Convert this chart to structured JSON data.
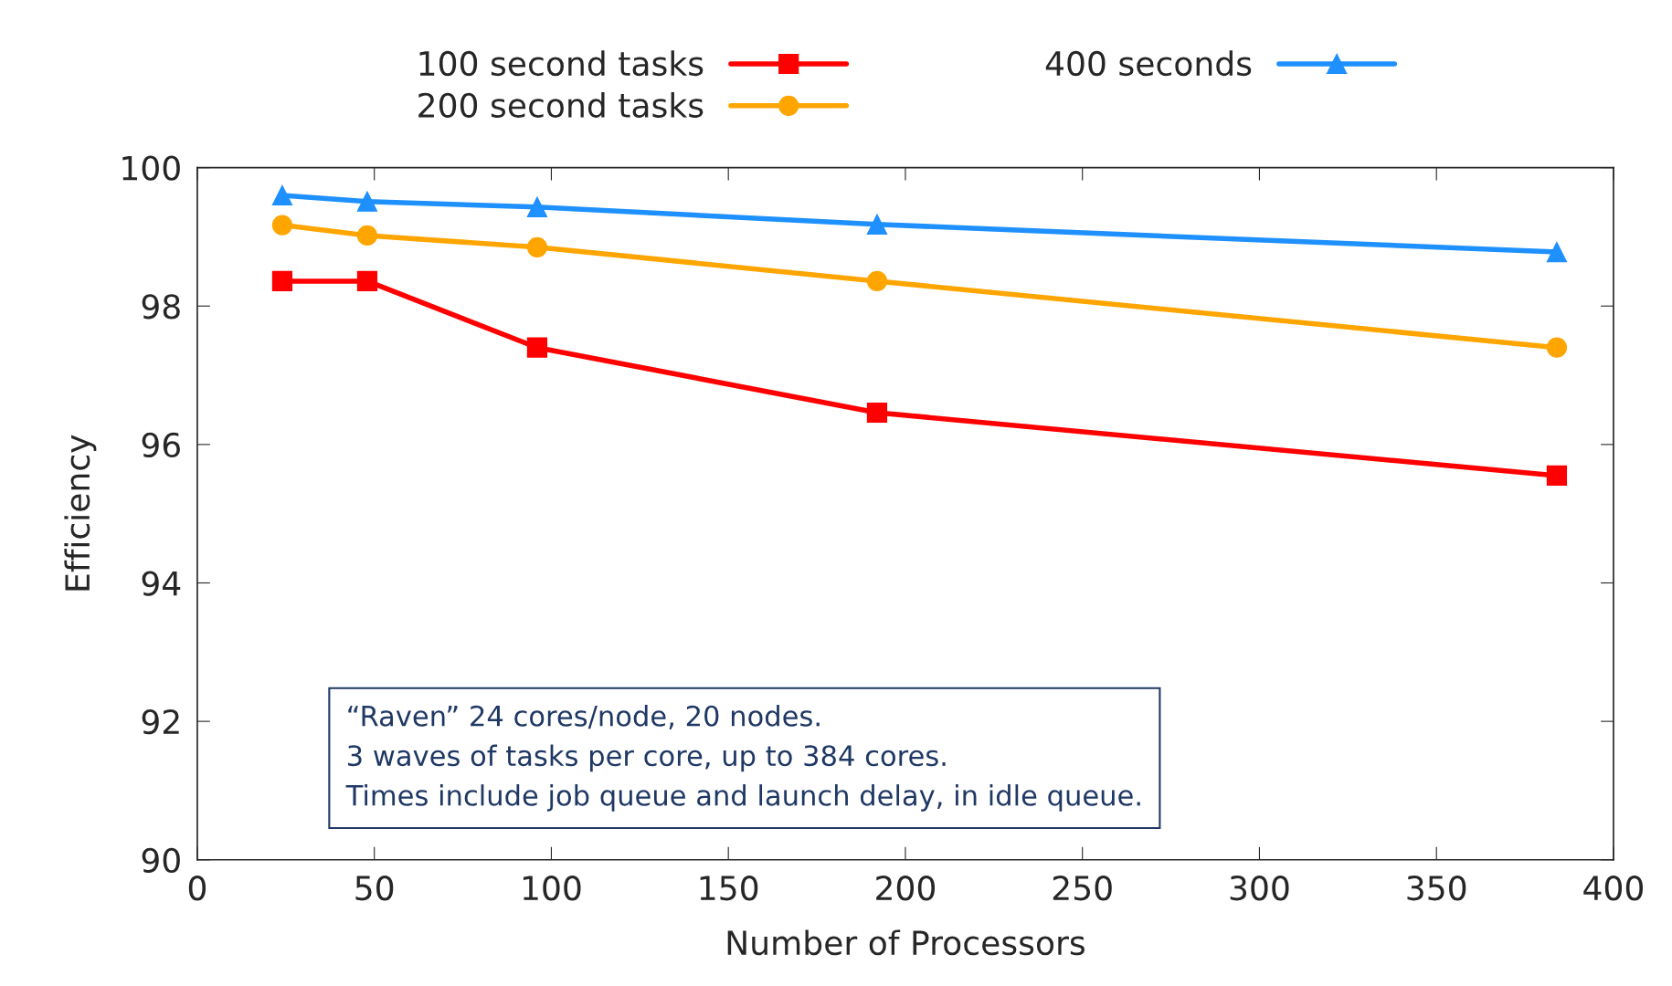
{
  "chart_data": {
    "type": "line",
    "xlabel": "Number of Processors",
    "ylabel": "Efficiency",
    "x": [
      24,
      48,
      96,
      192,
      384
    ],
    "series": [
      {
        "name": "100 second tasks",
        "color": "#ff0000",
        "marker": "square",
        "values": [
          98.36,
          98.36,
          97.4,
          96.46,
          95.55
        ]
      },
      {
        "name": "200 second tasks",
        "color": "#ffa500",
        "marker": "circle",
        "values": [
          99.17,
          99.02,
          98.85,
          98.36,
          97.4
        ]
      },
      {
        "name": "400 seconds",
        "color": "#1e90ff",
        "marker": "triangle",
        "values": [
          99.6,
          99.51,
          99.43,
          99.18,
          98.78
        ]
      }
    ],
    "xlim": [
      0,
      400
    ],
    "xticks": [
      0,
      50,
      100,
      150,
      200,
      250,
      300,
      350,
      400
    ],
    "ylim": [
      90,
      100
    ],
    "yticks": [
      90,
      92,
      94,
      96,
      98,
      100
    ],
    "grid": false,
    "legend": "top",
    "line_style": "solid",
    "annotations": [
      "“Raven” 24 cores/node, 20 nodes.\n3 waves of tasks per core, up to 384 cores.\nTimes include job queue and launch delay, in idle queue."
    ]
  }
}
